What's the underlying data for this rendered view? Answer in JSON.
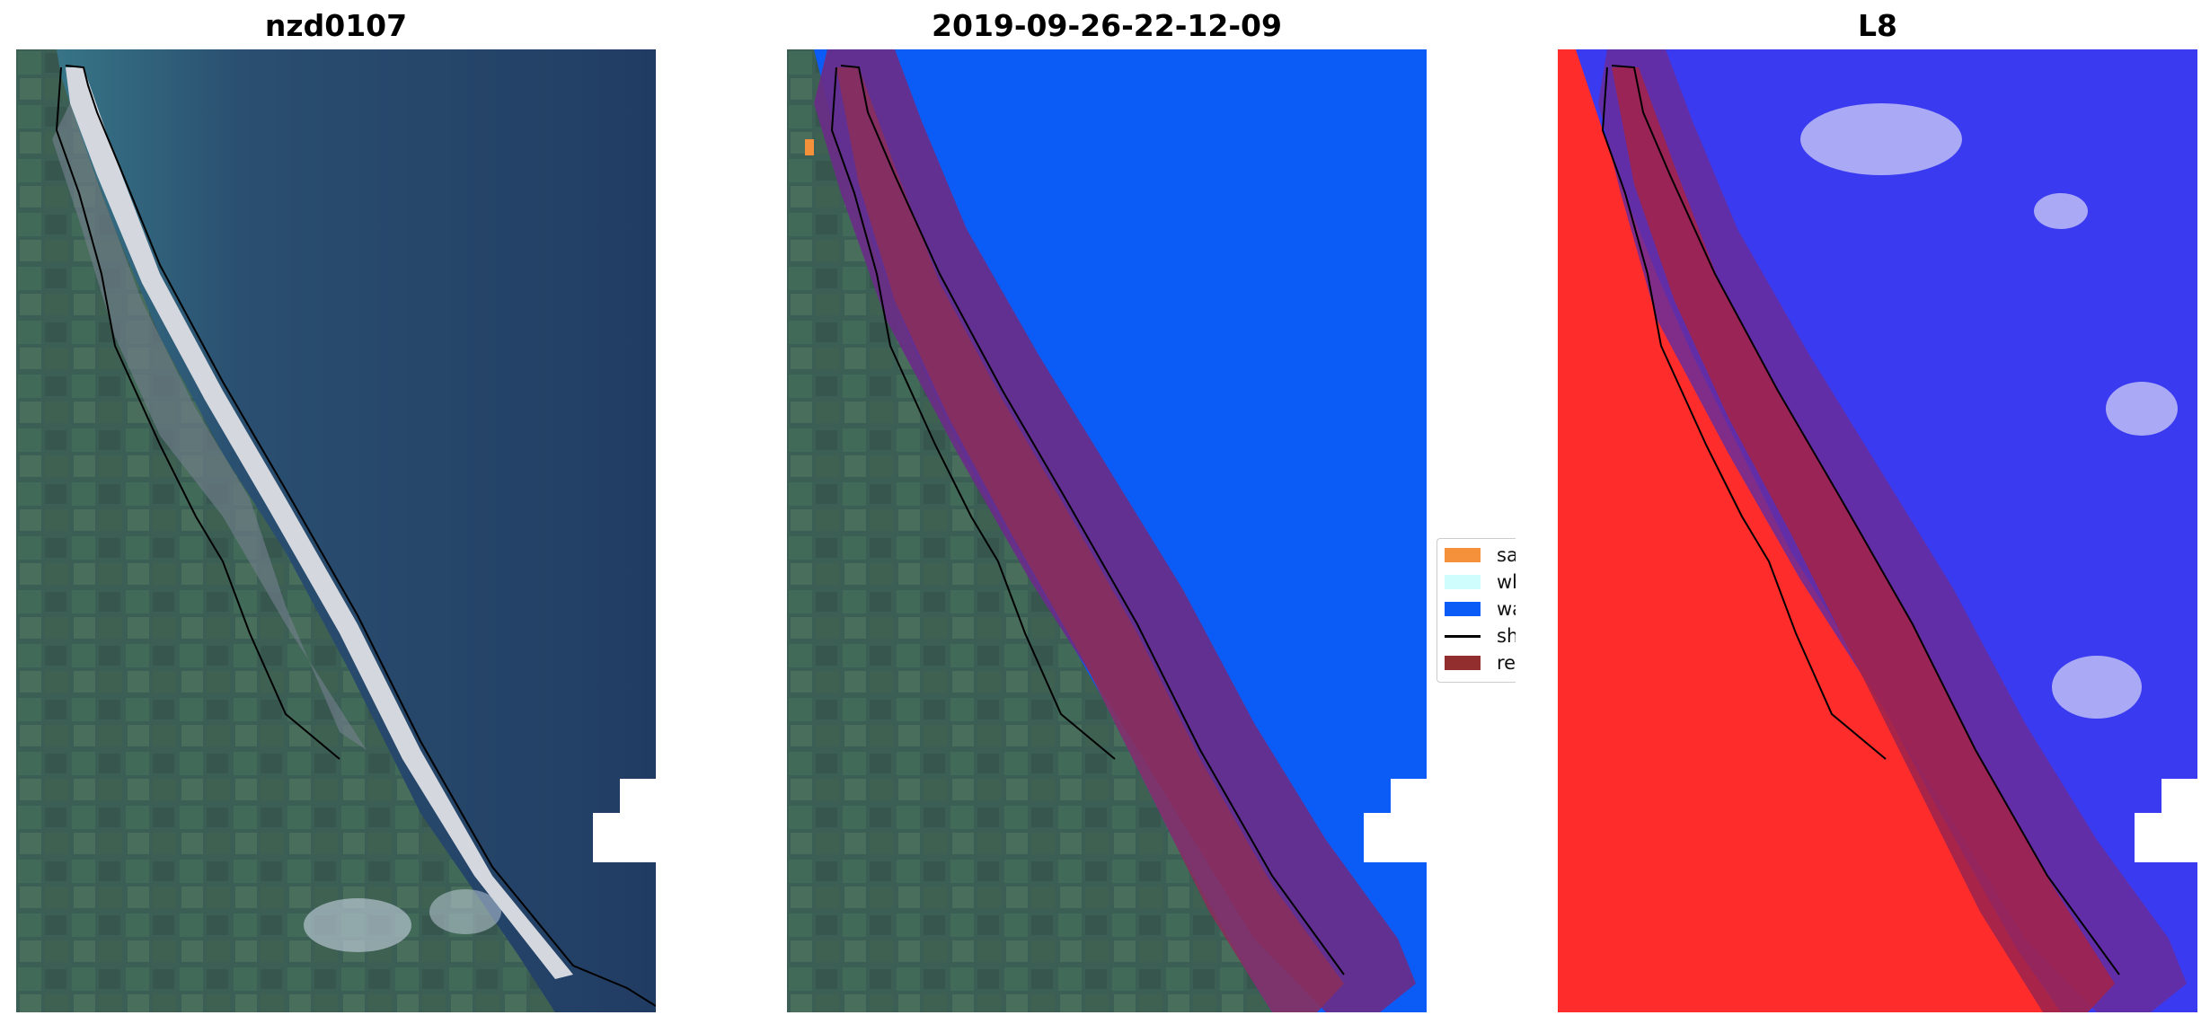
{
  "panels": [
    {
      "title": "nzd0107",
      "kind": "rgb-image"
    },
    {
      "title": "2019-09-26-22-12-09",
      "kind": "classified-image"
    },
    {
      "title": "L8",
      "kind": "water-index-image"
    }
  ],
  "legend": {
    "position": "between second and third panel",
    "items": [
      {
        "label": "sand",
        "color": "#f5903b",
        "type": "patch"
      },
      {
        "label": "whitewater",
        "color": "#cffcfc",
        "type": "patch"
      },
      {
        "label": "water",
        "color": "#0b5cf6",
        "type": "patch"
      },
      {
        "label": "shoreline",
        "color": "#000000",
        "type": "line"
      },
      {
        "label": "reference",
        "color": "#932e2e",
        "type": "patch"
      }
    ]
  },
  "colors": {
    "ocean": "#213c63",
    "land": "#3b5f55",
    "beach": "#c9cfd6",
    "water_class": "#0b5cf6",
    "buffer": "#6a2d88",
    "index_land": "#ff2c2c",
    "index_water": "#3a3af0"
  }
}
